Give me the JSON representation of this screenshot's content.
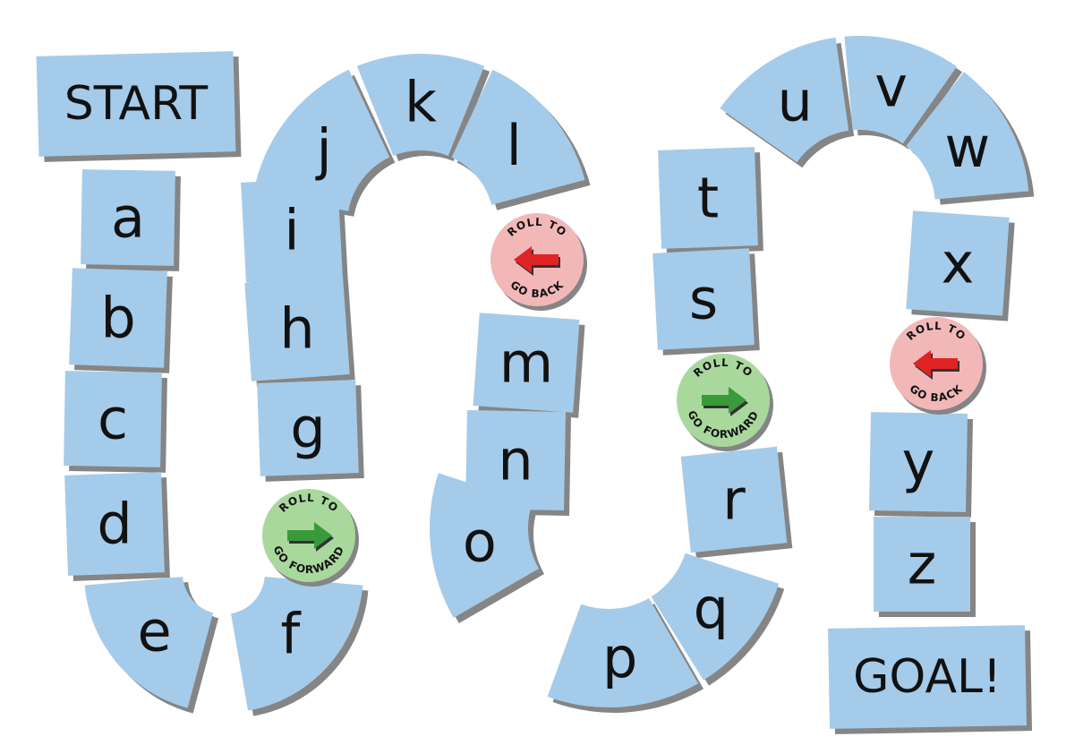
{
  "start_label": "START",
  "goal_label": "GOAL!",
  "letters": [
    "a",
    "b",
    "c",
    "d",
    "e",
    "f",
    "g",
    "h",
    "i",
    "j",
    "k",
    "l",
    "m",
    "n",
    "o",
    "p",
    "q",
    "r",
    "s",
    "t",
    "u",
    "v",
    "w",
    "x",
    "y",
    "z"
  ],
  "badges": [
    {
      "kind": "forward",
      "top": "ROLL TO",
      "bottom": "GO FORWARD"
    },
    {
      "kind": "back",
      "top": "ROLL TO",
      "bottom": "GO BACK"
    },
    {
      "kind": "forward",
      "top": "ROLL TO",
      "bottom": "GO FORWARD"
    },
    {
      "kind": "back",
      "top": "ROLL TO",
      "bottom": "GO BACK"
    }
  ],
  "colors": {
    "tile": "#a5cbea",
    "shadow": "#858585",
    "forward_bg": "#a9d89d",
    "forward_arrow": "#3a9a3a",
    "back_bg": "#f2b8b8",
    "back_arrow": "#e02323"
  }
}
